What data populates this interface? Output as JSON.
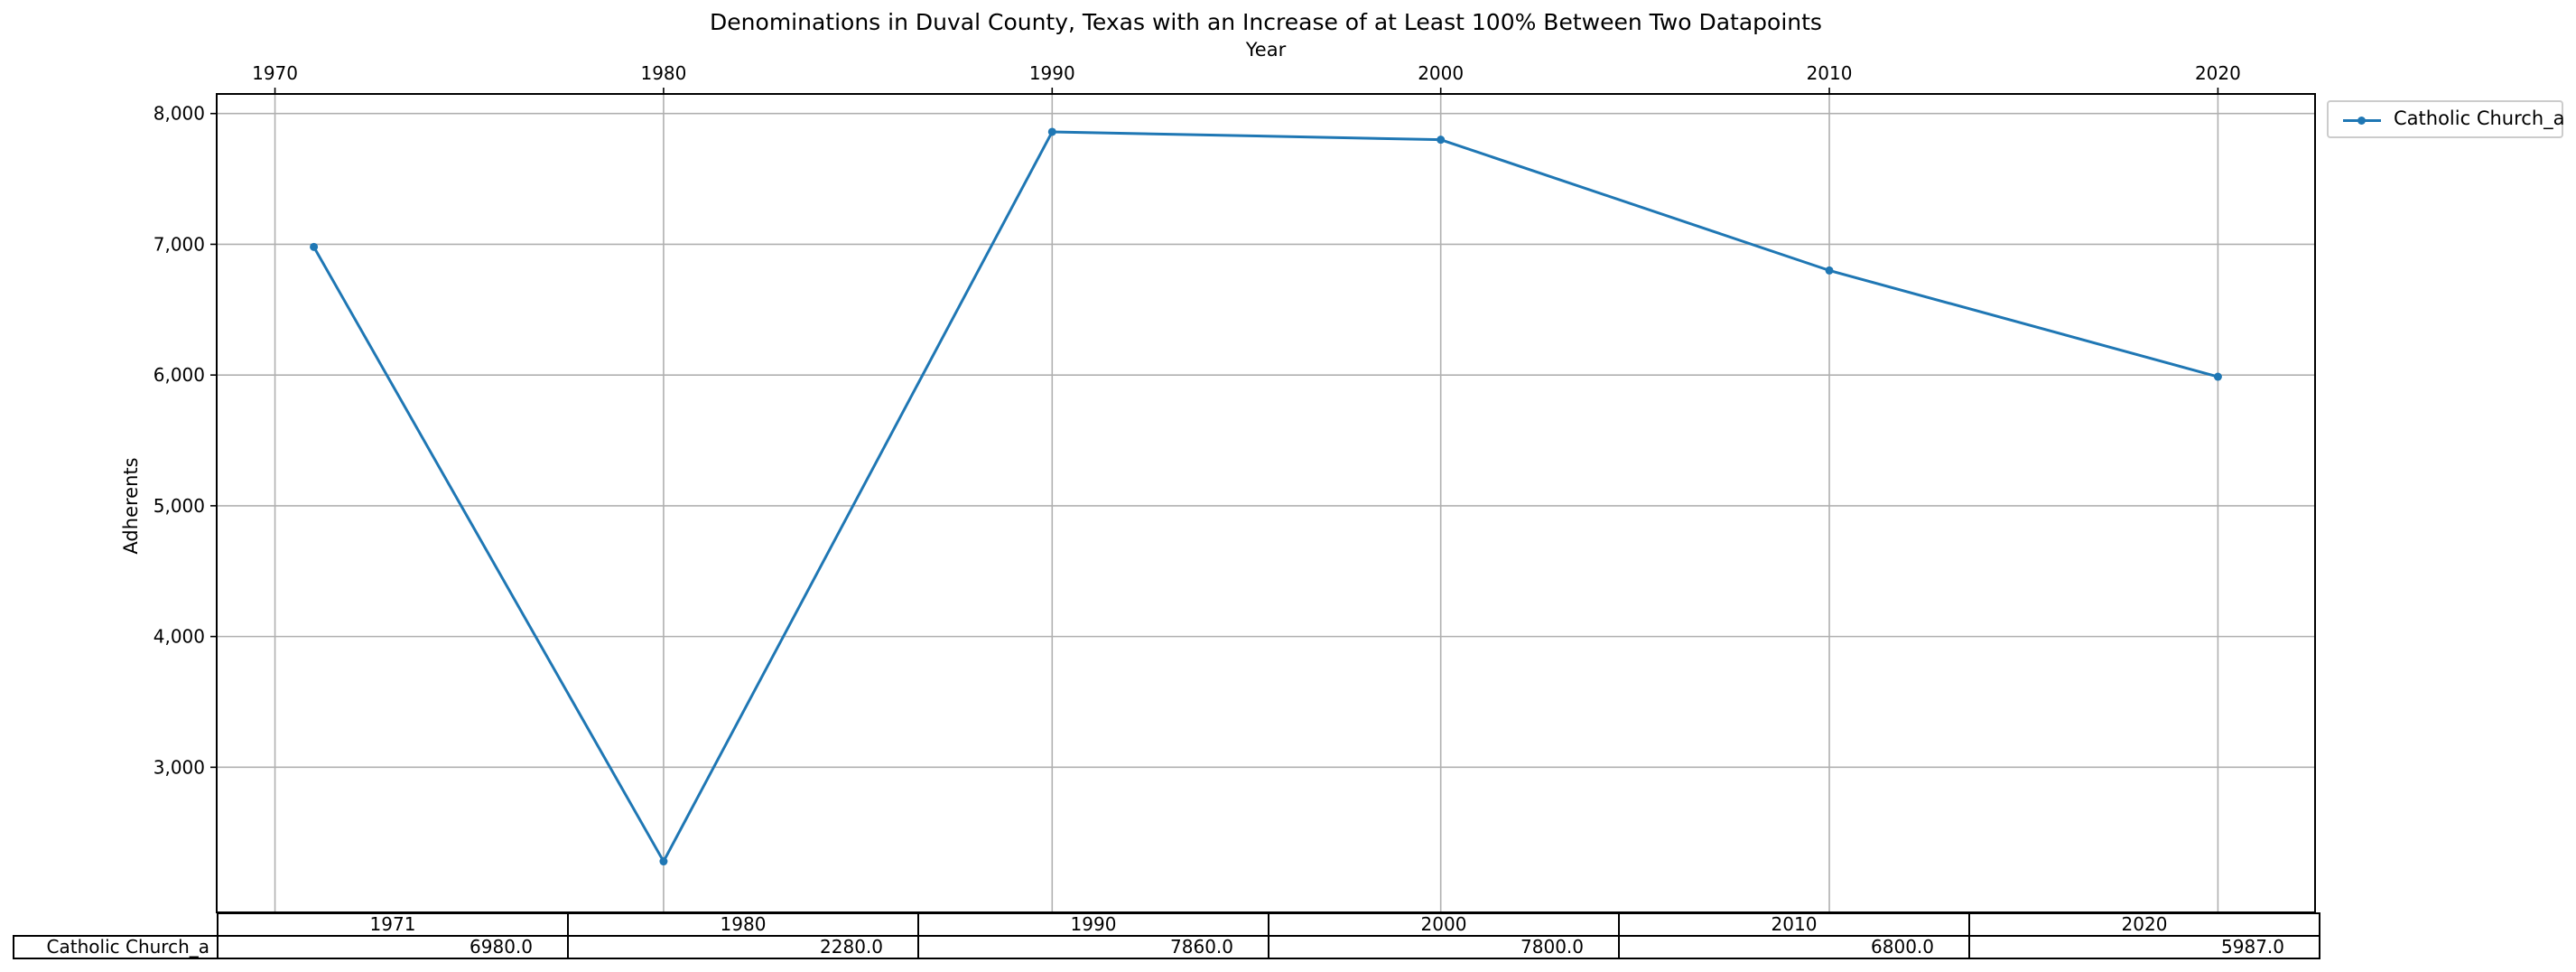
{
  "chart_data": {
    "type": "line",
    "title": "Denominations in Duval County, Texas with an Increase of at Least 100% Between Two Datapoints",
    "xlabel": "Year",
    "ylabel": "Adherents",
    "x_ticks": [
      "1970",
      "1980",
      "1990",
      "2000",
      "2010",
      "2020"
    ],
    "y_ticks": [
      "3,000",
      "4,000",
      "5,000",
      "6,000",
      "7,000",
      "8,000"
    ],
    "xlim": [
      1968.5,
      2022.5
    ],
    "ylim": [
      1890,
      8150
    ],
    "grid": true,
    "legend_position": "outside top-right",
    "x": [
      1971,
      1980,
      1990,
      2000,
      2010,
      2020
    ],
    "series": [
      {
        "name": "Catholic Church_a",
        "color": "#1f77b4",
        "values": [
          6980,
          2280,
          7860,
          7800,
          6800,
          5987
        ]
      }
    ],
    "table": {
      "columns": [
        "1971",
        "1980",
        "1990",
        "2000",
        "2010",
        "2020"
      ],
      "rows": [
        {
          "label": "Catholic Church_a",
          "cells": [
            "6980.0",
            "2280.0",
            "7860.0",
            "7800.0",
            "6800.0",
            "5987.0"
          ]
        }
      ]
    }
  }
}
